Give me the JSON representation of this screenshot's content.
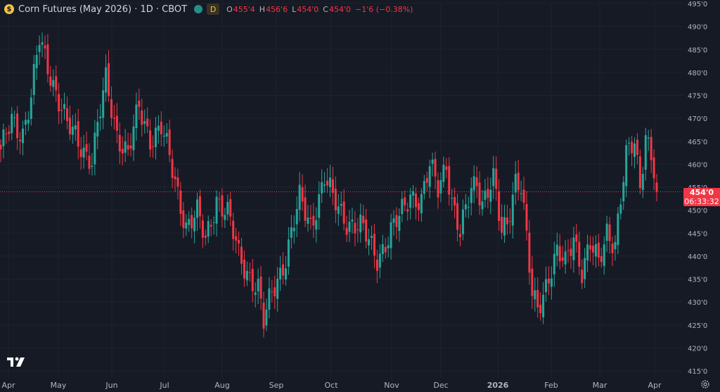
{
  "header": {
    "symbol_icon": "corn-coin-icon",
    "title": "Corn Futures (May 2026) · 1D · CBOT",
    "timeframe_badge": "D",
    "open_label": "O",
    "open": "455'4",
    "high_label": "H",
    "high": "456'6",
    "low_label": "L",
    "low": "454'0",
    "close_label": "C",
    "close": "454'0",
    "change": "−1'6 (−0.38%)"
  },
  "last_price": {
    "price": "454'0",
    "countdown": "06:33:32"
  },
  "colors": {
    "up": "#26a69a",
    "down": "#f23645",
    "background": "#161a25",
    "grid": "#1f2330",
    "axis_text": "#b2b5be"
  },
  "chart_data": {
    "type": "candlestick",
    "y_ticks": [
      {
        "value": 415,
        "label": "415'0"
      },
      {
        "value": 420,
        "label": "420'0"
      },
      {
        "value": 425,
        "label": "425'0"
      },
      {
        "value": 430,
        "label": "430'0"
      },
      {
        "value": 435,
        "label": "435'0"
      },
      {
        "value": 440,
        "label": "440'0"
      },
      {
        "value": 445,
        "label": "445'0"
      },
      {
        "value": 450,
        "label": "450'0"
      },
      {
        "value": 455,
        "label": "455'0"
      },
      {
        "value": 460,
        "label": "460'0"
      },
      {
        "value": 465,
        "label": "465'0"
      },
      {
        "value": 470,
        "label": "470'0"
      },
      {
        "value": 475,
        "label": "475'0"
      },
      {
        "value": 480,
        "label": "480'0"
      },
      {
        "value": 485,
        "label": "485'0"
      },
      {
        "value": 490,
        "label": "490'0"
      },
      {
        "value": 495,
        "label": "495'0"
      }
    ],
    "x_ticks": [
      "Apr",
      "May",
      "Jun",
      "Jul",
      "Aug",
      "Sep",
      "Oct",
      "Nov",
      "Dec",
      "2026",
      "Feb",
      "Mar",
      "Apr"
    ],
    "ylim": [
      414,
      496
    ],
    "last_value": 454.0,
    "anchors": [
      [
        0,
        462
      ],
      [
        4,
        470
      ],
      [
        8,
        467
      ],
      [
        11,
        474
      ],
      [
        14,
        487
      ],
      [
        18,
        480
      ],
      [
        24,
        468
      ],
      [
        27,
        466
      ],
      [
        33,
        461
      ],
      [
        38,
        478
      ],
      [
        42,
        467
      ],
      [
        46,
        462
      ],
      [
        50,
        472
      ],
      [
        54,
        466
      ],
      [
        58,
        468
      ],
      [
        63,
        456
      ],
      [
        67,
        447
      ],
      [
        71,
        449
      ],
      [
        74,
        443
      ],
      [
        78,
        453
      ],
      [
        82,
        449
      ],
      [
        86,
        440
      ],
      [
        90,
        436
      ],
      [
        93,
        433
      ],
      [
        95,
        425
      ],
      [
        98,
        432
      ],
      [
        103,
        440
      ],
      [
        108,
        452
      ],
      [
        112,
        447
      ],
      [
        117,
        457
      ],
      [
        120,
        452
      ],
      [
        125,
        448
      ],
      [
        130,
        446
      ],
      [
        136,
        440
      ],
      [
        140,
        444
      ],
      [
        144,
        448
      ],
      [
        148,
        454
      ],
      [
        152,
        452
      ],
      [
        155,
        459
      ],
      [
        158,
        455
      ],
      [
        161,
        461
      ],
      [
        163,
        452
      ],
      [
        166,
        444
      ],
      [
        170,
        455
      ],
      [
        172,
        457
      ],
      [
        174,
        452
      ],
      [
        178,
        456
      ],
      [
        181,
        445
      ],
      [
        183,
        448
      ],
      [
        186,
        457
      ],
      [
        188,
        455
      ],
      [
        190,
        443
      ],
      [
        192,
        431
      ],
      [
        194,
        429
      ],
      [
        198,
        436
      ],
      [
        201,
        440
      ],
      [
        204,
        438
      ],
      [
        207,
        445
      ],
      [
        210,
        437
      ],
      [
        213,
        442
      ],
      [
        216,
        438
      ],
      [
        219,
        446
      ],
      [
        222,
        443
      ],
      [
        224,
        452
      ],
      [
        226,
        461
      ],
      [
        229,
        465
      ],
      [
        231,
        456
      ],
      [
        233,
        467
      ],
      [
        235,
        462
      ],
      [
        237,
        454
      ]
    ]
  }
}
